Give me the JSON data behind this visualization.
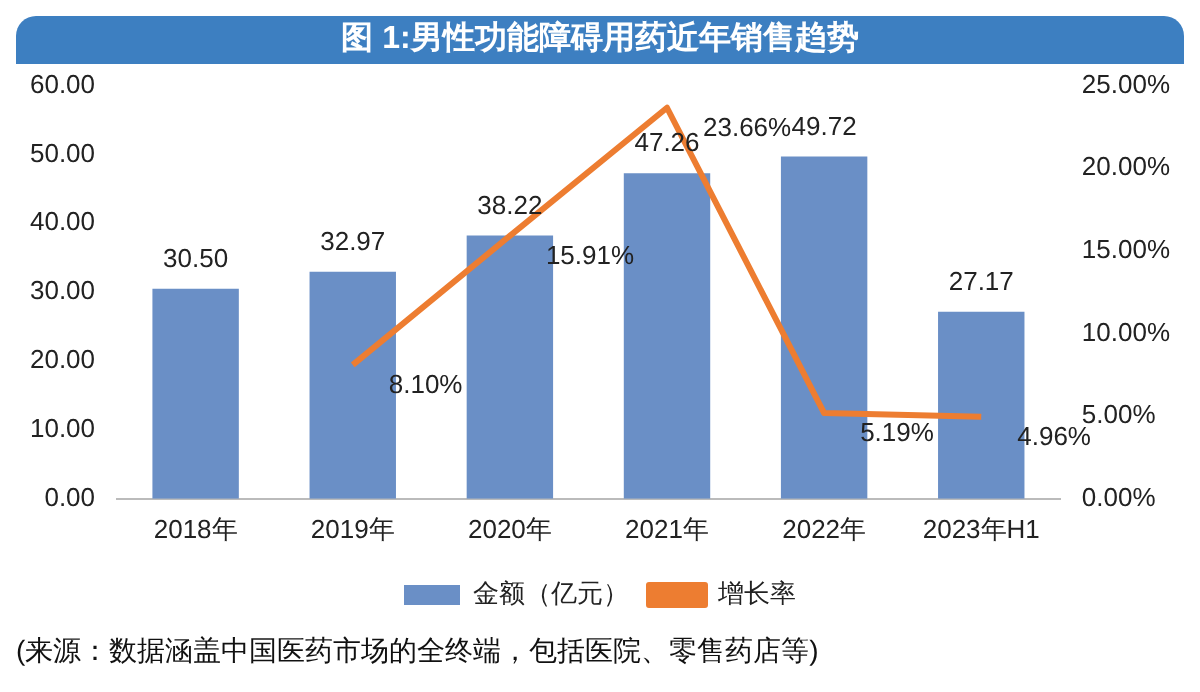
{
  "chart_data": {
    "type": "bar",
    "title": "图 1:男性功能障碍用药近年销售趋势",
    "categories": [
      "2018年",
      "2019年",
      "2020年",
      "2021年",
      "2022年",
      "2023年H1"
    ],
    "series": [
      {
        "name": "金额（亿元）",
        "color": "#6a8fc6",
        "values": [
          30.5,
          32.97,
          38.22,
          47.26,
          49.72,
          27.17
        ],
        "value_labels": [
          "30.50",
          "32.97",
          "38.22",
          "47.26",
          "49.72",
          "27.17"
        ]
      },
      {
        "name": "增长率",
        "type": "line",
        "axis": "y2",
        "color": "#ed7d31",
        "values": [
          null,
          8.1,
          15.91,
          23.66,
          5.19,
          4.96
        ],
        "value_labels": [
          null,
          "8.10%",
          "15.91%",
          "23.66%",
          "5.19%",
          "4.96%"
        ]
      }
    ],
    "ylim": [
      0,
      60
    ],
    "yticks": [
      {
        "value": 0,
        "label": "0.00"
      },
      {
        "value": 10,
        "label": "10.00"
      },
      {
        "value": 20,
        "label": "20.00"
      },
      {
        "value": 30,
        "label": "30.00"
      },
      {
        "value": 40,
        "label": "40.00"
      },
      {
        "value": 50,
        "label": "50.00"
      },
      {
        "value": 60,
        "label": "60.00"
      }
    ],
    "y2lim": [
      0,
      25
    ],
    "y2ticks": [
      {
        "value": 0,
        "label": "0.00%"
      },
      {
        "value": 5,
        "label": "5.00%"
      },
      {
        "value": 10,
        "label": "10.00%"
      },
      {
        "value": 15,
        "label": "15.00%"
      },
      {
        "value": 20,
        "label": "20.00%"
      },
      {
        "value": 25,
        "label": "25.00%"
      }
    ],
    "legend": "bottom",
    "marker": "none",
    "annotations": [
      "(来源：数据涵盖中国医药市场的全终端，包括医院、零售药店等)"
    ]
  }
}
